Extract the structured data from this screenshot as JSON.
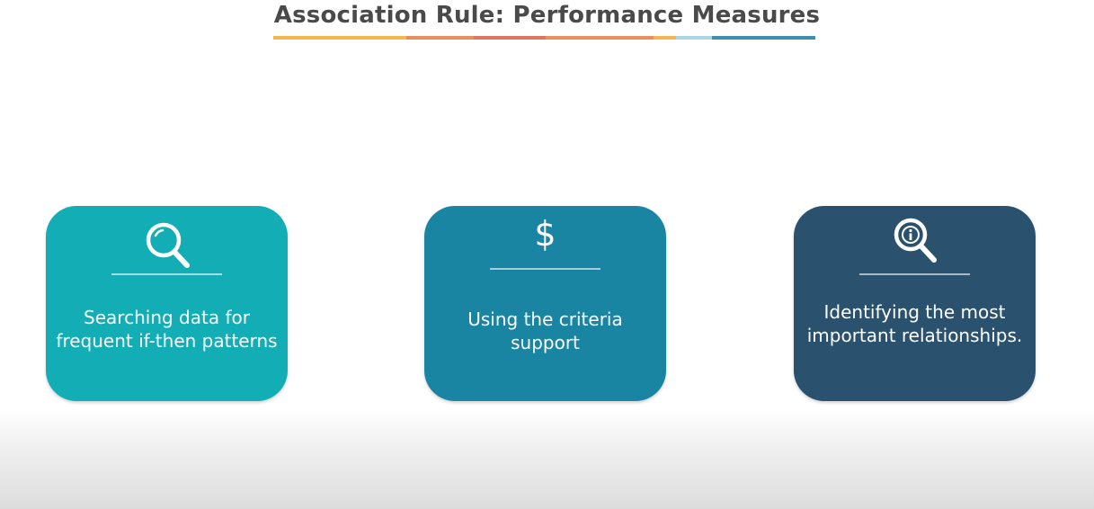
{
  "title": "Association Rule: Performance Measures",
  "underline_colors": [
    "#f3b74e",
    "#e88d5b",
    "#e1735f",
    "#e98f5c",
    "#f2b750",
    "#a9d6e3",
    "#3e8fb0"
  ],
  "cards": [
    {
      "icon": "magnifier-icon",
      "text_line1": "Searching data for",
      "text_line2": "frequent if-then patterns",
      "color": "#12adb5"
    },
    {
      "icon": "dollar-icon",
      "icon_glyph": "$",
      "text_line1": "Using the criteria",
      "text_line2": "support",
      "color": "#1a85a3"
    },
    {
      "icon": "info-magnifier-icon",
      "text_line1": "Identifying the most",
      "text_line2": "important relationships.",
      "color": "#2a516d"
    }
  ]
}
